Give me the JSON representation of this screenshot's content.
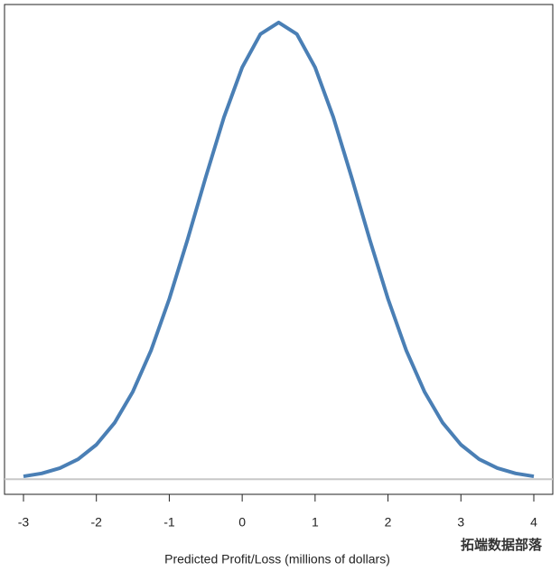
{
  "chart_data": {
    "type": "line",
    "xlabel": "Predicted Profit/Loss (millions of dollars)",
    "annotation": "拓端数据部落",
    "x": [
      -3,
      -2.75,
      -2.5,
      -2.25,
      -2,
      -1.75,
      -1.5,
      -1.25,
      -1,
      -0.75,
      -0.5,
      -0.25,
      0,
      0.25,
      0.5,
      0.75,
      1,
      1.25,
      1.5,
      1.75,
      2,
      2.25,
      2.5,
      2.75,
      3,
      3.25,
      3.5,
      3.75,
      4
    ],
    "series": [
      {
        "color": "#4a7fb5",
        "values": [
          0.0023,
          0.0046,
          0.0088,
          0.0159,
          0.0274,
          0.0448,
          0.0695,
          0.1023,
          0.1432,
          0.1902,
          0.2399,
          0.2875,
          0.3271,
          0.3535,
          0.3627,
          0.3535,
          0.3271,
          0.2875,
          0.2399,
          0.1902,
          0.1432,
          0.1023,
          0.0695,
          0.0448,
          0.0274,
          0.0159,
          0.0088,
          0.0046,
          0.0023
        ]
      }
    ],
    "xlim": [
      -3.26,
      4.26
    ],
    "xticks": [
      -3,
      -2,
      -1,
      0,
      1,
      2,
      3,
      4
    ],
    "ylim": [
      -0.012,
      0.377
    ]
  }
}
